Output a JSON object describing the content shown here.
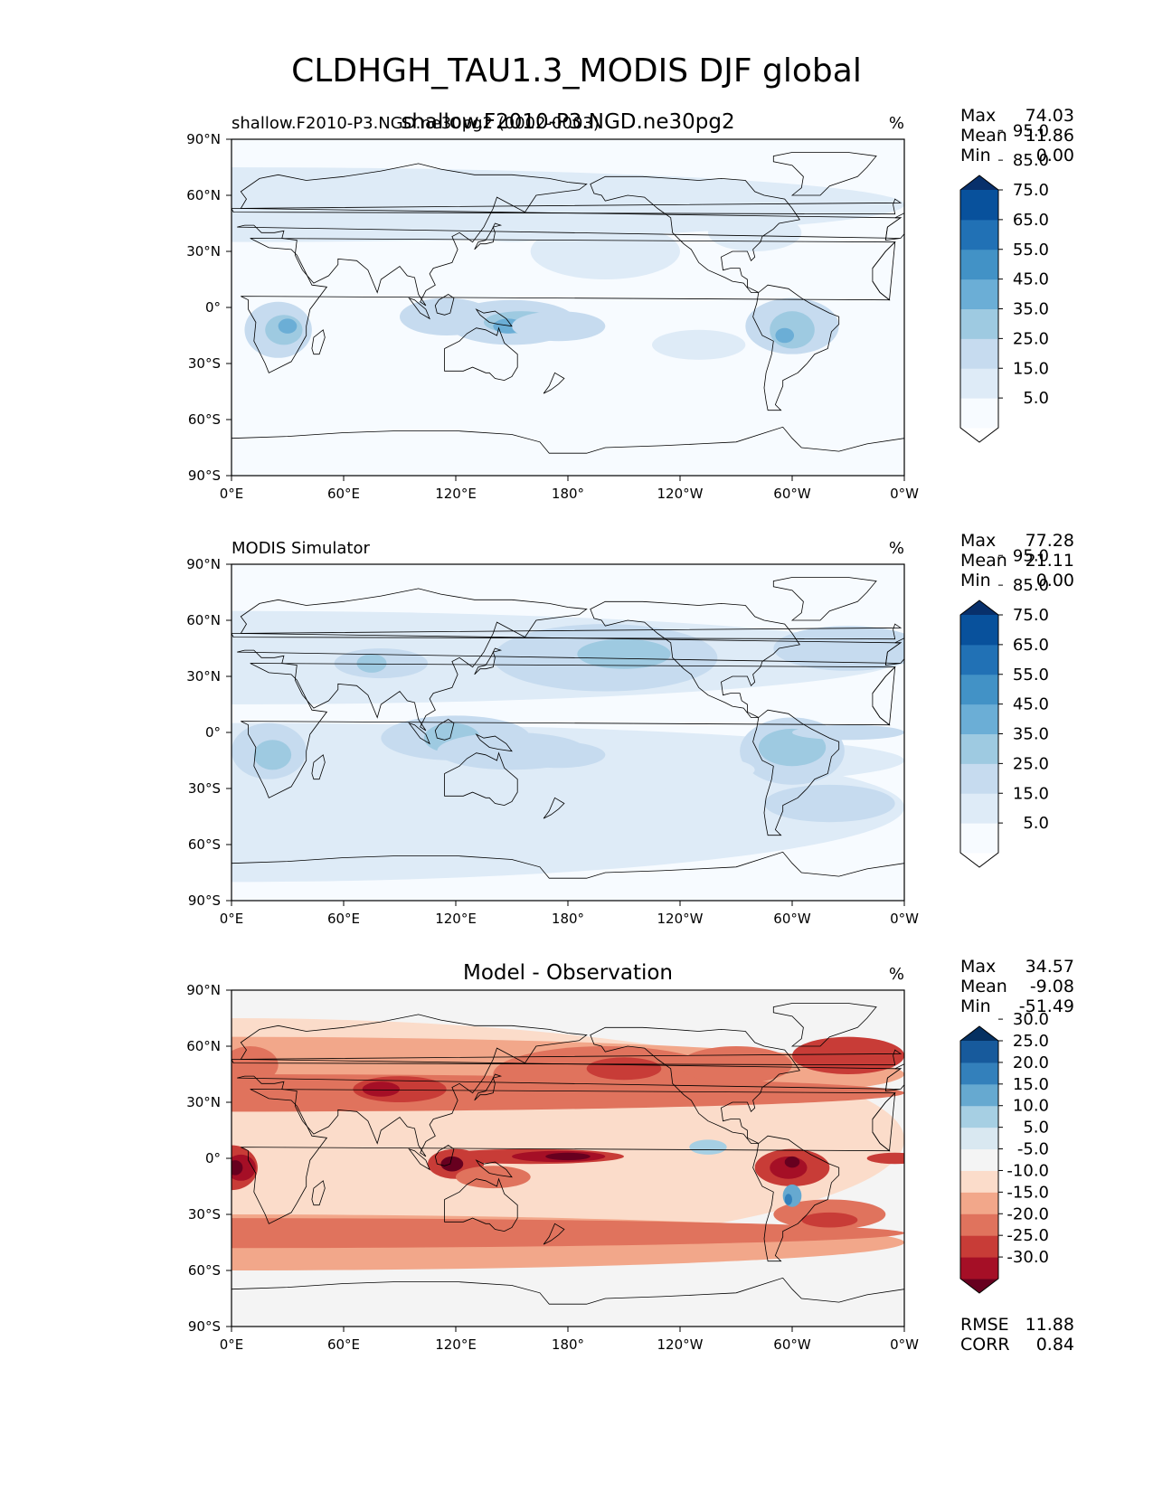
{
  "figure": {
    "title": "CLDHGH_TAU1.3_MODIS DJF global"
  },
  "chart_data": [
    {
      "type": "heatmap",
      "panel_title": "shallow.F2010-P3.NGD.ne30pg2",
      "left_label": "shallow.F2010-P3.NGD.ne30pg2 (0002-0003)",
      "units": "%",
      "stats": [
        {
          "label": "Max",
          "value": "74.03"
        },
        {
          "label": "Mean",
          "value": "11.86"
        },
        {
          "label": "Min",
          "value": "0.00"
        }
      ],
      "colorbar": {
        "extend": "both",
        "colors": [
          "#ffffff",
          "#f7fbff",
          "#deebf7",
          "#c6dbef",
          "#9ecae1",
          "#6baed6",
          "#4292c6",
          "#2171b5",
          "#08519c",
          "#08306b"
        ],
        "levels": [
          0,
          5.0,
          15.0,
          25.0,
          35.0,
          45.0,
          55.0,
          65.0,
          75.0,
          85.0,
          95.0
        ],
        "tick_labels": [
          "5.0",
          "15.0",
          "25.0",
          "35.0",
          "45.0",
          "55.0",
          "65.0",
          "75.0",
          "85.0",
          "95.0"
        ]
      },
      "xticks": [
        "0°E",
        "60°E",
        "120°E",
        "180°",
        "120°W",
        "60°W",
        "0°W"
      ],
      "yticks": [
        "90°N",
        "60°N",
        "30°N",
        "0°",
        "30°S",
        "60°S",
        "90°S"
      ]
    },
    {
      "type": "heatmap",
      "left_label": "MODIS Simulator",
      "units": "%",
      "stats": [
        {
          "label": "Max",
          "value": "77.28"
        },
        {
          "label": "Mean",
          "value": "21.11"
        },
        {
          "label": "Min",
          "value": "0.00"
        }
      ],
      "colorbar": {
        "extend": "both",
        "colors": [
          "#ffffff",
          "#f7fbff",
          "#deebf7",
          "#c6dbef",
          "#9ecae1",
          "#6baed6",
          "#4292c6",
          "#2171b5",
          "#08519c",
          "#08306b"
        ],
        "levels": [
          0,
          5.0,
          15.0,
          25.0,
          35.0,
          45.0,
          55.0,
          65.0,
          75.0,
          85.0,
          95.0
        ],
        "tick_labels": [
          "5.0",
          "15.0",
          "25.0",
          "35.0",
          "45.0",
          "55.0",
          "65.0",
          "75.0",
          "85.0",
          "95.0"
        ]
      },
      "xticks": [
        "0°E",
        "60°E",
        "120°E",
        "180°",
        "120°W",
        "60°W",
        "0°W"
      ],
      "yticks": [
        "90°N",
        "60°N",
        "30°N",
        "0°",
        "30°S",
        "60°S",
        "90°S"
      ]
    },
    {
      "type": "heatmap",
      "panel_title": "Model - Observation",
      "units": "%",
      "stats": [
        {
          "label": "Max",
          "value": "34.57"
        },
        {
          "label": "Mean",
          "value": "-9.08"
        },
        {
          "label": "Min",
          "value": "-51.49"
        }
      ],
      "extra_stats": [
        {
          "label": "RMSE",
          "value": "11.88"
        },
        {
          "label": "CORR",
          "value": "0.84"
        }
      ],
      "colorbar": {
        "extend": "both",
        "colors": [
          "#67001f",
          "#a50f26",
          "#c83c37",
          "#e0735d",
          "#f2a78a",
          "#fbdcca",
          "#f4f4f4",
          "#d9e8f1",
          "#a6cfe3",
          "#66a9d0",
          "#3380bb",
          "#175a9c",
          "#053061"
        ],
        "levels": [
          -30.0,
          -25.0,
          -20.0,
          -15.0,
          -10.0,
          -5.0,
          5.0,
          10.0,
          15.0,
          20.0,
          25.0,
          30.0
        ],
        "tick_labels": [
          "-30.0",
          "-25.0",
          "-20.0",
          "-15.0",
          "-10.0",
          "-5.0",
          "5.0",
          "10.0",
          "15.0",
          "20.0",
          "25.0",
          "30.0"
        ]
      },
      "xticks": [
        "0°E",
        "60°E",
        "120°E",
        "180°",
        "120°W",
        "60°W",
        "0°W"
      ],
      "yticks": [
        "90°N",
        "60°N",
        "30°N",
        "0°",
        "30°S",
        "60°S",
        "90°S"
      ]
    }
  ]
}
